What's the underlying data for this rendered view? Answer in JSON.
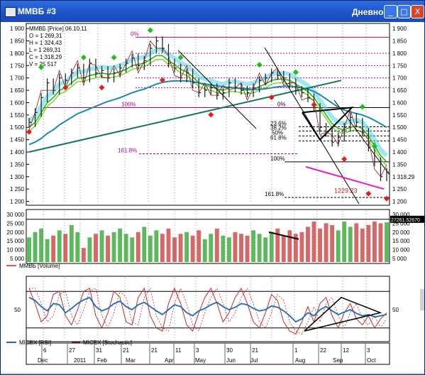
{
  "window": {
    "title": "MMBБ #3",
    "mode": "Дневной",
    "buttons": {
      "minimize": "_",
      "maximize": "□",
      "close": "X"
    }
  },
  "colors": {
    "price_up": "#1a1a1a",
    "ma_green": "#14b414",
    "ma_lime": "#7cd62a",
    "ma_cyan": "#4fd6e8",
    "ma_teal": "#1a8ab0",
    "ma_dark": "#137a4f",
    "fib": "#b4007c",
    "volume_up": "#1a9a1a",
    "volume_down": "#c62828",
    "rsi": "#1a6ac8",
    "stoch": "#c62828",
    "signal_up": "#18c018",
    "signal_down": "#e02020"
  },
  "legend": {
    "header": "MMBБ [Price] 06.10.11",
    "open": "O = 1 269,31",
    "high": "H = 1 324,43",
    "low": "L = 1 269,31",
    "close": "C = 1 318,29",
    "volume": "V = 25 517",
    "volume_panel": "MMBБ [Volume]",
    "rsi": "MICEX [RSI]",
    "stoch": "MICEX [Stochastic]"
  },
  "chart_data": {
    "type": "line",
    "price_axis": {
      "ticks": [
        1900,
        1850,
        1800,
        1750,
        1700,
        1650,
        1600,
        1550,
        1500,
        1450,
        1400,
        1350,
        1300,
        1250,
        1200
      ],
      "labels_left": [
        "1 900",
        "1 850",
        "1 800",
        "1 750",
        "1 700",
        "1 650",
        "1 600",
        "1 550",
        "1 500",
        "1 450",
        "1 400",
        "1 350",
        "1 300",
        "1 250",
        "1 200"
      ],
      "labels_right": [
        "1 900",
        "1 850",
        "1 800",
        "1 750",
        "1 700",
        "1 650",
        "1 600",
        "1 550",
        "1 500",
        "1 450",
        "1 400",
        "1 350",
        "1 318,29",
        "1 250",
        "1 200"
      ],
      "ylim": [
        1190,
        1915
      ],
      "last_price": "1 318,29"
    },
    "fib_labels": [
      "0%",
      "100%",
      "161.8%",
      "0%",
      "23.6%",
      "38.2%",
      "50%",
      "61.8%",
      "100%",
      "161.8%",
      "1229.23"
    ],
    "price_close": [
      1520,
      1560,
      1620,
      1680,
      1650,
      1700,
      1690,
      1720,
      1740,
      1700,
      1760,
      1720,
      1730,
      1700,
      1720,
      1740,
      1760,
      1780,
      1750,
      1770,
      1820,
      1850,
      1820,
      1760,
      1740,
      1700,
      1720,
      1680,
      1640,
      1650,
      1660,
      1630,
      1640,
      1680,
      1660,
      1650,
      1640,
      1660,
      1690,
      1700,
      1720,
      1710,
      1700,
      1680,
      1650,
      1640,
      1620,
      1580,
      1500,
      1480,
      1440,
      1460,
      1500,
      1540,
      1520,
      1480,
      1420,
      1360,
      1300,
      1318
    ],
    "ma_fast": [
      1500,
      1520,
      1560,
      1600,
      1620,
      1650,
      1660,
      1680,
      1700,
      1700,
      1710,
      1715,
      1720,
      1715,
      1718,
      1725,
      1735,
      1750,
      1755,
      1760,
      1775,
      1790,
      1790,
      1770,
      1755,
      1735,
      1725,
      1705,
      1680,
      1670,
      1665,
      1655,
      1650,
      1660,
      1660,
      1655,
      1650,
      1655,
      1665,
      1675,
      1690,
      1695,
      1695,
      1690,
      1675,
      1660,
      1645,
      1620,
      1585,
      1550,
      1515,
      1495,
      1490,
      1500,
      1505,
      1495,
      1465,
      1425,
      1385,
      1360
    ],
    "ma_slow": [
      1430,
      1440,
      1455,
      1475,
      1490,
      1510,
      1525,
      1540,
      1555,
      1565,
      1575,
      1585,
      1595,
      1605,
      1612,
      1620,
      1630,
      1640,
      1648,
      1655,
      1665,
      1675,
      1682,
      1686,
      1688,
      1688,
      1688,
      1685,
      1680,
      1676,
      1672,
      1668,
      1664,
      1662,
      1660,
      1658,
      1656,
      1654,
      1654,
      1656,
      1660,
      1664,
      1666,
      1666,
      1664,
      1660,
      1654,
      1645,
      1632,
      1615,
      1598,
      1582,
      1570,
      1562,
      1556,
      1550,
      1540,
      1528,
      1514,
      1500
    ],
    "trend_long": [
      1400,
      1690
    ],
    "buy_signals": [
      [
        2,
        1720
      ],
      [
        9,
        1760
      ],
      [
        14,
        1760
      ],
      [
        20,
        1870
      ],
      [
        25,
        1760
      ],
      [
        38,
        1730
      ],
      [
        44,
        1700
      ],
      [
        55,
        1560
      ],
      [
        57,
        1400
      ]
    ],
    "sell_signals": [
      [
        0,
        1510
      ],
      [
        6,
        1690
      ],
      [
        12,
        1690
      ],
      [
        22,
        1720
      ],
      [
        30,
        1580
      ],
      [
        40,
        1650
      ],
      [
        47,
        1620
      ],
      [
        52,
        1400
      ],
      [
        56,
        1260
      ],
      [
        59,
        1240
      ]
    ],
    "volume_axis": {
      "labels_left": [
        "30 000",
        "25 000",
        "20 000",
        "15 000",
        "10 000",
        "5 000"
      ],
      "labels_right": [
        "30 000",
        "25 000",
        "20 000",
        "15 000",
        "10 000",
        "5 000"
      ],
      "ylim": [
        3000,
        32000
      ],
      "last_label": "27261.52670",
      "last_volume": "25517"
    },
    "volume": [
      17000,
      20000,
      22000,
      16000,
      18000,
      21000,
      19000,
      24000,
      20000,
      11000,
      17000,
      19000,
      21000,
      18000,
      20000,
      22000,
      19000,
      17000,
      20000,
      23000,
      18000,
      21000,
      19000,
      22000,
      17000,
      19000,
      20000,
      18000,
      21000,
      16000,
      19000,
      22000,
      18000,
      17000,
      20000,
      19000,
      18000,
      21000,
      19000,
      17000,
      20000,
      22000,
      18000,
      21000,
      19000,
      20000,
      23000,
      26000,
      22000,
      25000,
      24000,
      21000,
      26000,
      23000,
      25000,
      22000,
      24000,
      26000,
      25000,
      25517
    ],
    "oscillator_axis": {
      "label": "50",
      "ylim": [
        0,
        100
      ]
    },
    "rsi": [
      70,
      65,
      55,
      48,
      60,
      58,
      45,
      52,
      60,
      66,
      70,
      55,
      48,
      52,
      60,
      64,
      55,
      50,
      58,
      62,
      55,
      48,
      42,
      50,
      58,
      55,
      45,
      40,
      48,
      52,
      58,
      62,
      55,
      50,
      54,
      60,
      58,
      52,
      48,
      50,
      56,
      54,
      48,
      40,
      30,
      35,
      45,
      40,
      50,
      55,
      48,
      42,
      46,
      50,
      44,
      40,
      42,
      38,
      40,
      42
    ],
    "stoch": [
      85,
      60,
      30,
      40,
      75,
      80,
      40,
      25,
      50,
      80,
      85,
      40,
      20,
      45,
      80,
      70,
      30,
      25,
      70,
      85,
      40,
      20,
      15,
      60,
      85,
      60,
      25,
      15,
      45,
      70,
      85,
      60,
      30,
      45,
      70,
      85,
      60,
      30,
      20,
      45,
      75,
      65,
      30,
      15,
      10,
      30,
      55,
      30,
      60,
      70,
      40,
      20,
      45,
      60,
      35,
      25,
      40,
      20,
      35,
      45
    ],
    "x_labels": {
      "days": [
        "6",
        "27",
        "31",
        "21",
        "21",
        "11",
        "3",
        "30",
        "21",
        "1",
        "22",
        "12",
        "3"
      ],
      "months": [
        "Dec",
        "2011",
        "Feb",
        "Mar",
        "Apr",
        "May",
        "Jun",
        "Jul",
        "Aug",
        "Sep",
        "Oct"
      ]
    }
  }
}
